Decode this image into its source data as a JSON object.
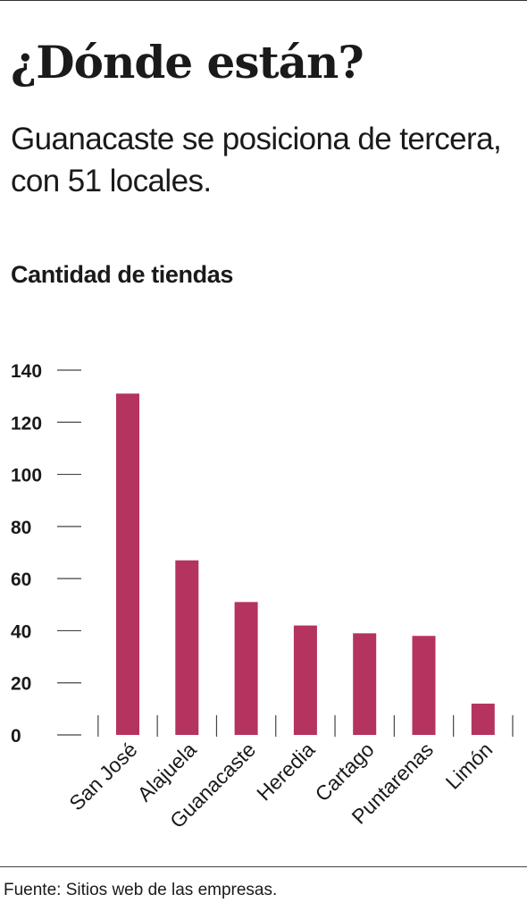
{
  "header": {
    "title": "¿Dónde están?",
    "subtitle": "Guanacaste se posiciona de tercera, con 51 locales."
  },
  "footer": {
    "source": "Fuente: Sitios web de las empresas."
  },
  "chart_data": {
    "type": "bar",
    "title": "",
    "xlabel": "",
    "ylabel": "Cantidad de tiendas",
    "categories": [
      "San José",
      "Alajuela",
      "Guanacaste",
      "Heredia",
      "Cartago",
      "Puntarenas",
      "Limón"
    ],
    "values": [
      131,
      67,
      51,
      42,
      39,
      38,
      12
    ],
    "ylim": [
      0,
      140
    ],
    "yticks": [
      0,
      20,
      40,
      60,
      80,
      100,
      120,
      140
    ],
    "grid": false,
    "bar_color": "#b5335f"
  }
}
